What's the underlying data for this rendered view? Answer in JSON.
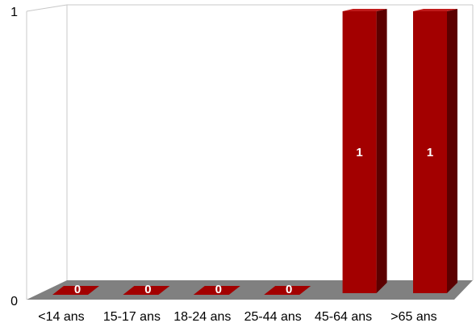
{
  "chart_data": {
    "type": "bar",
    "title": "",
    "xlabel": "",
    "ylabel": "",
    "categories": [
      "<14 ans",
      "15-17 ans",
      "18-24 ans",
      "25-44 ans",
      "45-64 ans",
      ">65 ans"
    ],
    "values": [
      0,
      0,
      0,
      0,
      1,
      1
    ],
    "data_labels": [
      "0",
      "0",
      "0",
      "0",
      "1",
      "1"
    ],
    "ylim": [
      0,
      1
    ],
    "y_ticks": [
      "0",
      "1"
    ],
    "grid": false,
    "legend": "none",
    "style": "3d",
    "colors": {
      "bar_front": "#a30000",
      "bar_side": "#5c0000",
      "bar_top": "#c01a1a",
      "floor": "#808080",
      "wall_line": "#c8c8c8"
    }
  }
}
